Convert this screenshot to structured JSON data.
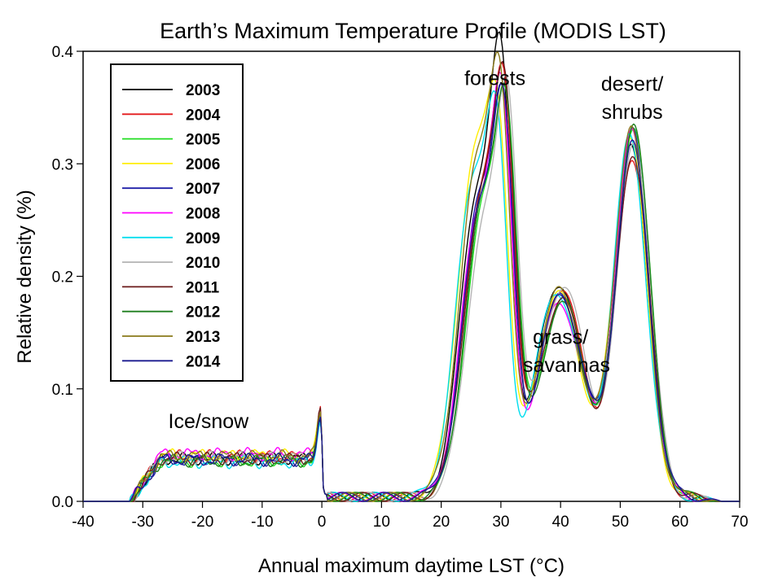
{
  "chart_data": {
    "type": "line",
    "title": "Earth’s Maximum Temperature Profile (MODIS LST)",
    "xlabel": "Annual maximum daytime LST (°C)",
    "ylabel": "Relative density (%)",
    "xlim": [
      -40,
      70
    ],
    "ylim": [
      0,
      0.4
    ],
    "x_ticks": [
      "-40",
      "-30",
      "-20",
      "-10",
      "0",
      "10",
      "20",
      "30",
      "40",
      "50",
      "60",
      "70"
    ],
    "y_ticks": [
      "0.0",
      "0.1",
      "0.2",
      "0.3",
      "0.4"
    ],
    "grid": false,
    "legend_position": "top-left",
    "annotations": [
      {
        "text": "Ice/snow",
        "x": -19,
        "y": 0.065
      },
      {
        "text": "forests",
        "x": 29,
        "y": 0.37
      },
      {
        "text": "desert/",
        "x": 52,
        "y": 0.365
      },
      {
        "text": "shrubs",
        "x": 52,
        "y": 0.34
      },
      {
        "text": "grass/",
        "x": 40,
        "y": 0.14
      },
      {
        "text": "savannas",
        "x": 41,
        "y": 0.115
      }
    ],
    "series": [
      {
        "name": "2003",
        "color": "#000000",
        "shift": -0.3,
        "peaks": [
          0.27,
          0.36,
          0.31
        ],
        "mid": 0.19,
        "ice": 0.038
      },
      {
        "name": "2004",
        "color": "#e41a1c",
        "shift": 0.2,
        "peaks": [
          0.265,
          0.335,
          0.3
        ],
        "mid": 0.185,
        "ice": 0.04
      },
      {
        "name": "2005",
        "color": "#22dd22",
        "shift": 0.6,
        "peaks": [
          0.255,
          0.32,
          0.33
        ],
        "mid": 0.175,
        "ice": 0.036
      },
      {
        "name": "2006",
        "color": "#ffee00",
        "shift": -0.8,
        "peaks": [
          0.3,
          0.315,
          0.32
        ],
        "mid": 0.18,
        "ice": 0.041
      },
      {
        "name": "2007",
        "color": "#1f1fa8",
        "shift": 0.0,
        "peaks": [
          0.26,
          0.32,
          0.325
        ],
        "mid": 0.178,
        "ice": 0.037
      },
      {
        "name": "2008",
        "color": "#ff00ff",
        "shift": -0.2,
        "peaks": [
          0.25,
          0.33,
          0.322
        ],
        "mid": 0.172,
        "ice": 0.042
      },
      {
        "name": "2009",
        "color": "#00ddee",
        "shift": -1.0,
        "peaks": [
          0.28,
          0.305,
          0.318
        ],
        "mid": 0.182,
        "ice": 0.035
      },
      {
        "name": "2010",
        "color": "#b4b4b4",
        "shift": 0.8,
        "peaks": [
          0.245,
          0.328,
          0.315
        ],
        "mid": 0.188,
        "ice": 0.039
      },
      {
        "name": "2011",
        "color": "#6b1a1a",
        "shift": 0.3,
        "peaks": [
          0.262,
          0.34,
          0.305
        ],
        "mid": 0.176,
        "ice": 0.038
      },
      {
        "name": "2012",
        "color": "#1e7e1e",
        "shift": 0.5,
        "peaks": [
          0.258,
          0.322,
          0.332
        ],
        "mid": 0.17,
        "ice": 0.036
      },
      {
        "name": "2013",
        "color": "#8a7a1a",
        "shift": -0.5,
        "peaks": [
          0.29,
          0.345,
          0.328
        ],
        "mid": 0.183,
        "ice": 0.04
      },
      {
        "name": "2014",
        "color": "#1a1a8f",
        "shift": 0.1,
        "peaks": [
          0.256,
          0.318,
          0.312
        ],
        "mid": 0.179,
        "ice": 0.037
      }
    ]
  }
}
